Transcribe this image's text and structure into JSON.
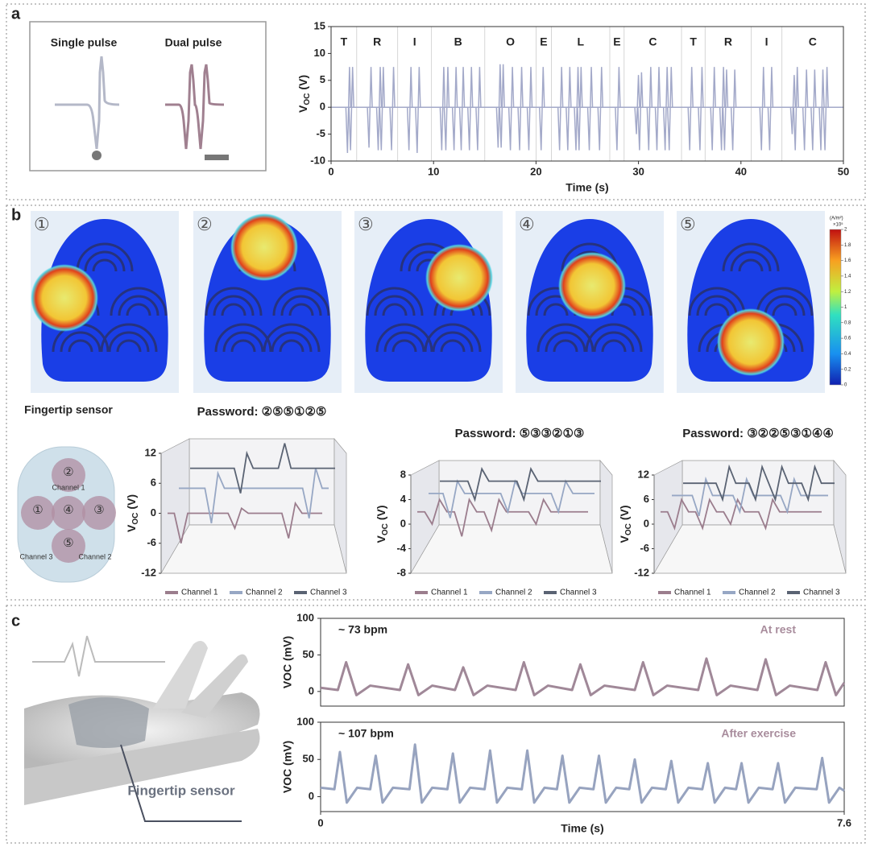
{
  "panel_labels": [
    "a",
    "b",
    "c"
  ],
  "inset": {
    "single": "Single pulse",
    "dual": "Dual pulse"
  },
  "heatmaps": {
    "labels": [
      "①",
      "②",
      "③",
      "④",
      "⑤"
    ]
  },
  "colorbar": {
    "unit": "(A/m²)",
    "scale": "×10⁵",
    "lim": [
      0,
      2
    ],
    "ticks": [
      0,
      0.2,
      0.4,
      0.6,
      0.8,
      1,
      1.2,
      1.4,
      1.6,
      1.8,
      2
    ]
  },
  "sensor": {
    "title": "Fingertip sensor",
    "pads": [
      "②",
      "①",
      "④",
      "③",
      "⑤"
    ],
    "channels": [
      "Channel 1",
      "Channel 3",
      "Channel 2"
    ]
  },
  "hand_label": "Fingertip sensor",
  "chart_data": [
    {
      "type": "pulse",
      "color": "#a3a9c9",
      "xlim": [
        0,
        50
      ],
      "ylim": [
        -10,
        15
      ],
      "xticks": [
        0,
        10,
        20,
        30,
        40,
        50
      ],
      "yticks": [
        -10,
        -5,
        0,
        5,
        10,
        15
      ],
      "xlabel": "Time (s)",
      "ylabel": [
        "V",
        "OC",
        "(V)"
      ],
      "letters": [
        "T",
        "R",
        "I",
        "B",
        "O",
        "E",
        "L",
        "E",
        "C",
        "T",
        "R",
        "I",
        "C"
      ],
      "dividers": [
        2.5,
        6.5,
        9.8,
        15,
        20,
        21.5,
        27.2,
        28.6,
        34.2,
        36.5,
        41,
        44
      ],
      "x": [
        1.6,
        1.9,
        3.7,
        4.6,
        4.9,
        5.9,
        7.6,
        8.4,
        10.8,
        11.2,
        12.0,
        12.7,
        13.5,
        14.3,
        16.3,
        16.6,
        17.5,
        18.4,
        19.3,
        20.5,
        22.3,
        23.1,
        23.9,
        24.2,
        25.2,
        26.2,
        27.9,
        29.8,
        30.1,
        31.0,
        31.8,
        32.6,
        33.0,
        35.0,
        36.0,
        37.2,
        38.1,
        38.4,
        39.2,
        42.0,
        42.8,
        45.0,
        45.3,
        46.2,
        47.0,
        47.8,
        48.2
      ],
      "values": [
        7.5,
        7.5,
        7.5,
        7.5,
        7.5,
        7.5,
        7.5,
        7.5,
        7.5,
        7.5,
        7.5,
        7.5,
        7.5,
        7.5,
        8,
        8,
        7.5,
        7.5,
        7.5,
        7.5,
        7.5,
        7.5,
        7.5,
        7.5,
        7.5,
        7.5,
        7.5,
        6,
        6.5,
        7.5,
        7.5,
        7.5,
        7.5,
        7.5,
        7.5,
        7.5,
        7.5,
        7,
        7,
        7.5,
        7.5,
        6,
        7.5,
        7,
        7,
        7,
        7.5
      ],
      "lows": [
        -8.5,
        -8,
        -7.5,
        -8,
        -8,
        -8,
        -8,
        -8.5,
        -8,
        -8,
        -8,
        -8,
        -8,
        -8,
        -7.5,
        -7.5,
        -8,
        -8,
        -8,
        -8,
        -8,
        -8,
        -8,
        -8,
        -8,
        -8,
        -8,
        -5,
        -8,
        -8,
        -8,
        -8,
        -8,
        -8,
        -8,
        -8,
        -8,
        -8,
        -8,
        -8,
        -8,
        -5,
        -8,
        -8,
        -8,
        -8,
        -8
      ]
    },
    {
      "type": "line3d",
      "title": "Password: ②⑤⑤①②⑤",
      "ylim": [
        -12,
        12
      ],
      "yticks": [
        -12,
        -6,
        0,
        6,
        12
      ],
      "ylabel": [
        "V",
        "OC",
        "(V)"
      ],
      "series": [
        {
          "name": "Channel 1",
          "color": "#9b7d8d",
          "values": [
            0,
            0,
            -6,
            0,
            0,
            0,
            0,
            0,
            0,
            0,
            -3,
            1,
            0,
            0,
            0,
            0,
            0,
            0,
            -5,
            2,
            0,
            0,
            0,
            0
          ]
        },
        {
          "name": "Channel 2",
          "color": "#97a7c4",
          "values": [
            5,
            5,
            5,
            5,
            5,
            -2,
            8,
            5,
            5,
            5,
            5,
            5,
            5,
            5,
            5,
            5,
            5,
            5,
            5,
            5,
            -1,
            9,
            5,
            5
          ]
        },
        {
          "name": "Channel 3",
          "color": "#5a6373",
          "values": [
            9,
            9,
            9,
            9,
            9,
            9,
            9,
            9,
            4,
            12,
            9,
            9,
            9,
            9,
            9,
            14,
            9,
            9,
            9,
            9,
            9,
            9,
            9,
            9
          ]
        }
      ]
    },
    {
      "type": "line3d",
      "title": "Password: ⑤③③②①③",
      "ylim": [
        -8,
        8
      ],
      "yticks": [
        -8,
        -4,
        0,
        4,
        8
      ],
      "ylabel": [
        "V",
        "OC",
        "(V)"
      ],
      "series": [
        {
          "name": "Channel 1",
          "color": "#9b7d8d",
          "values": [
            2,
            2,
            0,
            4,
            2,
            2,
            -2,
            4,
            2,
            2,
            -1,
            4,
            2,
            2,
            2,
            2,
            0,
            4,
            2,
            2,
            2,
            2,
            2,
            2
          ]
        },
        {
          "name": "Channel 2",
          "color": "#97a7c4",
          "values": [
            5,
            5,
            5,
            1,
            7,
            5,
            5,
            5,
            5,
            5,
            5,
            2,
            7,
            5,
            5,
            5,
            5,
            5,
            2,
            7,
            5,
            5,
            5,
            5
          ]
        },
        {
          "name": "Channel 3",
          "color": "#5a6373",
          "values": [
            7,
            7,
            7,
            7,
            7,
            4,
            9,
            7,
            7,
            7,
            7,
            7,
            4,
            9,
            7,
            7,
            7,
            7,
            7,
            7,
            7,
            7,
            7,
            7
          ]
        }
      ]
    },
    {
      "type": "line3d",
      "title": "Password: ③②②⑤③①④④",
      "ylim": [
        -12,
        12
      ],
      "yticks": [
        -12,
        -6,
        0,
        6,
        12
      ],
      "ylabel": [
        "V",
        "OC",
        "(V)"
      ],
      "series": [
        {
          "name": "Channel 1",
          "color": "#9b7d8d",
          "values": [
            3,
            3,
            -1,
            6,
            3,
            3,
            -1,
            6,
            3,
            3,
            0,
            6,
            3,
            3,
            3,
            -1,
            6,
            3,
            3,
            3,
            3,
            3,
            3,
            3
          ]
        },
        {
          "name": "Channel 2",
          "color": "#97a7c4",
          "values": [
            7,
            7,
            7,
            7,
            2,
            11,
            7,
            7,
            7,
            7,
            3,
            11,
            7,
            7,
            7,
            7,
            7,
            3,
            11,
            7,
            7,
            7,
            7,
            7
          ]
        },
        {
          "name": "Channel 3",
          "color": "#5a6373",
          "values": [
            10,
            10,
            10,
            10,
            10,
            10,
            6,
            14,
            10,
            10,
            10,
            6,
            14,
            10,
            6,
            14,
            10,
            10,
            10,
            6,
            14,
            10,
            10,
            10
          ]
        }
      ]
    },
    {
      "type": "line",
      "title": "~ 73 bpm",
      "annotation": "At rest",
      "annotation_color": "#a88c9c",
      "color": "#a08898",
      "xlim": [
        0,
        7.6
      ],
      "ylim": [
        -20,
        100
      ],
      "yticks": [
        0,
        50,
        100
      ],
      "ylabel": "VOC (mV)",
      "x": [
        0,
        0.25,
        0.37,
        0.52,
        0.72,
        1.15,
        1.27,
        1.42,
        1.62,
        1.95,
        2.07,
        2.22,
        2.42,
        2.83,
        2.95,
        3.1,
        3.3,
        3.65,
        3.77,
        3.92,
        4.12,
        4.56,
        4.68,
        4.83,
        5.03,
        5.48,
        5.6,
        5.75,
        5.95,
        6.34,
        6.46,
        6.61,
        6.81,
        7.21,
        7.33,
        7.48,
        7.6
      ],
      "values": [
        5,
        2,
        40,
        -5,
        8,
        2,
        37,
        -5,
        8,
        2,
        33,
        -5,
        8,
        2,
        40,
        -5,
        8,
        2,
        37,
        -5,
        8,
        2,
        40,
        -5,
        8,
        2,
        45,
        -5,
        8,
        2,
        44,
        -5,
        8,
        2,
        40,
        -5,
        12
      ]
    },
    {
      "type": "line",
      "title": "~ 107 bpm",
      "annotation": "After exercise",
      "annotation_color": "#a88c9c",
      "color": "#97a3bf",
      "xlim": [
        0,
        7.6
      ],
      "ylim": [
        -20,
        100
      ],
      "yticks": [
        0,
        50,
        100
      ],
      "xticks": [
        0,
        7.6
      ],
      "xlabel": "Time (s)",
      "ylabel": "VOC (mV)",
      "x": [
        0,
        0.2,
        0.28,
        0.38,
        0.53,
        0.72,
        0.8,
        0.9,
        1.05,
        1.29,
        1.37,
        1.47,
        1.62,
        1.84,
        1.92,
        2.02,
        2.17,
        2.38,
        2.46,
        2.56,
        2.71,
        2.92,
        3.0,
        3.1,
        3.25,
        3.43,
        3.51,
        3.61,
        3.76,
        3.96,
        4.04,
        4.14,
        4.29,
        4.48,
        4.56,
        4.66,
        4.81,
        5.01,
        5.09,
        5.19,
        5.34,
        5.54,
        5.62,
        5.72,
        5.87,
        6.03,
        6.11,
        6.21,
        6.36,
        6.56,
        6.64,
        6.74,
        6.89,
        7.2,
        7.28,
        7.38,
        7.53,
        7.6
      ],
      "values": [
        12,
        10,
        60,
        -8,
        12,
        10,
        55,
        -8,
        12,
        10,
        70,
        -8,
        12,
        10,
        58,
        -8,
        12,
        10,
        62,
        -8,
        12,
        10,
        62,
        -8,
        12,
        10,
        55,
        -8,
        12,
        10,
        55,
        -8,
        12,
        10,
        50,
        -8,
        12,
        10,
        48,
        -8,
        12,
        10,
        45,
        -8,
        12,
        10,
        45,
        -8,
        12,
        10,
        45,
        -8,
        12,
        10,
        52,
        -8,
        12,
        8
      ]
    }
  ]
}
